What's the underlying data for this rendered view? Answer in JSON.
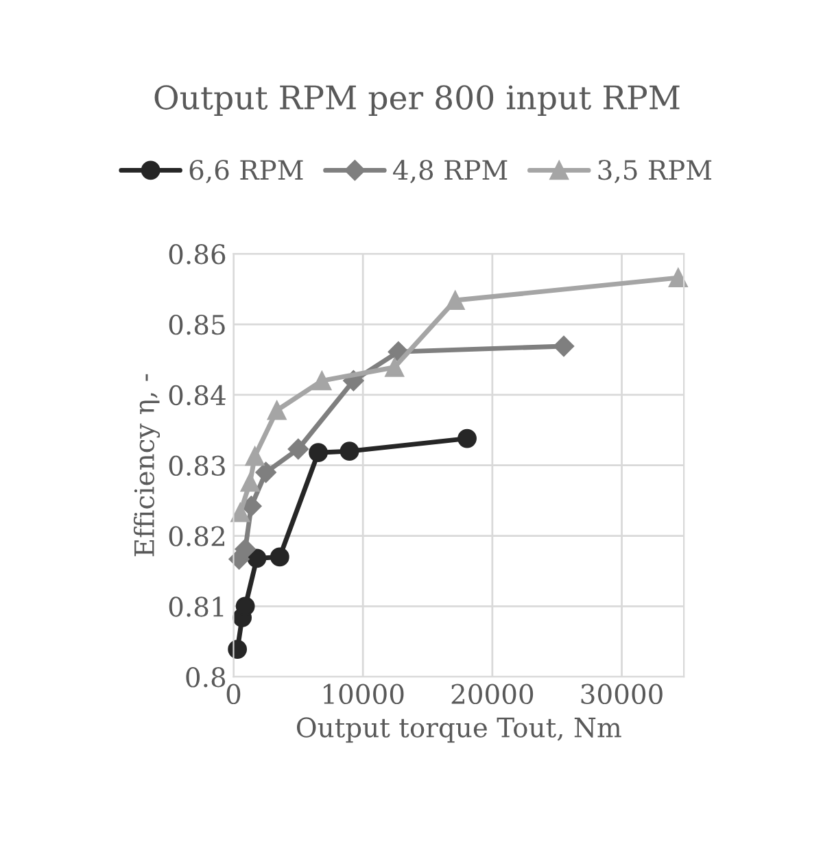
{
  "chart_data": {
    "type": "line",
    "title": "Output RPM per 800 input RPM",
    "xlabel": "Output torque Tout, Nm",
    "ylabel": "Efficiency η, -",
    "series": [
      {
        "name": "6,6 RPM",
        "color": "#262626",
        "marker": "circle",
        "x": [
          300,
          670,
          910,
          1800,
          3570,
          6550,
          8960,
          18050
        ],
        "values": [
          0.8039,
          0.8084,
          0.81,
          0.8168,
          0.817,
          0.8318,
          0.832,
          0.8338
        ]
      },
      {
        "name": "4,8 RPM",
        "color": "#7f7f7f",
        "marker": "diamond",
        "x": [
          430,
          910,
          1370,
          2500,
          5000,
          9270,
          12740,
          25520
        ],
        "values": [
          0.8167,
          0.8181,
          0.8242,
          0.829,
          0.8323,
          0.842,
          0.8461,
          0.8469
        ]
      },
      {
        "name": "3,5 RPM",
        "color": "#a5a5a5",
        "marker": "triangle",
        "x": [
          520,
          1280,
          1650,
          3350,
          6830,
          12440,
          17130,
          34360
        ],
        "values": [
          0.8233,
          0.8276,
          0.8313,
          0.8378,
          0.842,
          0.8439,
          0.8534,
          0.8566
        ]
      }
    ],
    "xlim": [
      0,
      34800
    ],
    "xticks": [
      0,
      10000,
      20000,
      30000
    ],
    "ylim": [
      0.8,
      0.86
    ],
    "yticks": [
      {
        "value": 0.8,
        "label": "0.8"
      },
      0.81,
      0.82,
      0.83,
      0.84,
      0.85,
      0.86
    ],
    "grid": true,
    "legend": "top",
    "line_style": "solid"
  }
}
